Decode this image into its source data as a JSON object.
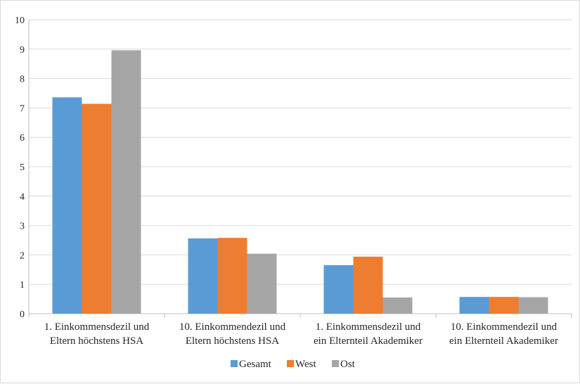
{
  "chart_data": {
    "type": "bar",
    "title": "",
    "xlabel": "",
    "ylabel": "",
    "ylim": [
      0,
      10
    ],
    "yticks": [
      "0",
      "1",
      "2",
      "3",
      "4",
      "5",
      "6",
      "7",
      "8",
      "9",
      "10"
    ],
    "grid": true,
    "legend_position": "bottom",
    "categories": [
      [
        "1. Einkommensdezil und",
        "Eltern höchstens HSA"
      ],
      [
        "10. Einkommendezil und",
        "Eltern höchstens HSA"
      ],
      [
        "1. Einkommensdezil und",
        "ein Elternteil Akademiker"
      ],
      [
        "10. Einkommendezil und",
        "ein Elternteil Akademiker"
      ]
    ],
    "series": [
      {
        "name": "Gesamt",
        "color": "#5b9bd5",
        "values": [
          7.36,
          2.56,
          1.65,
          0.57
        ]
      },
      {
        "name": "West",
        "color": "#ed7d31",
        "values": [
          7.14,
          2.58,
          1.94,
          0.57
        ]
      },
      {
        "name": "Ost",
        "color": "#a5a5a5",
        "values": [
          8.96,
          2.04,
          0.55,
          0.56
        ]
      }
    ]
  }
}
